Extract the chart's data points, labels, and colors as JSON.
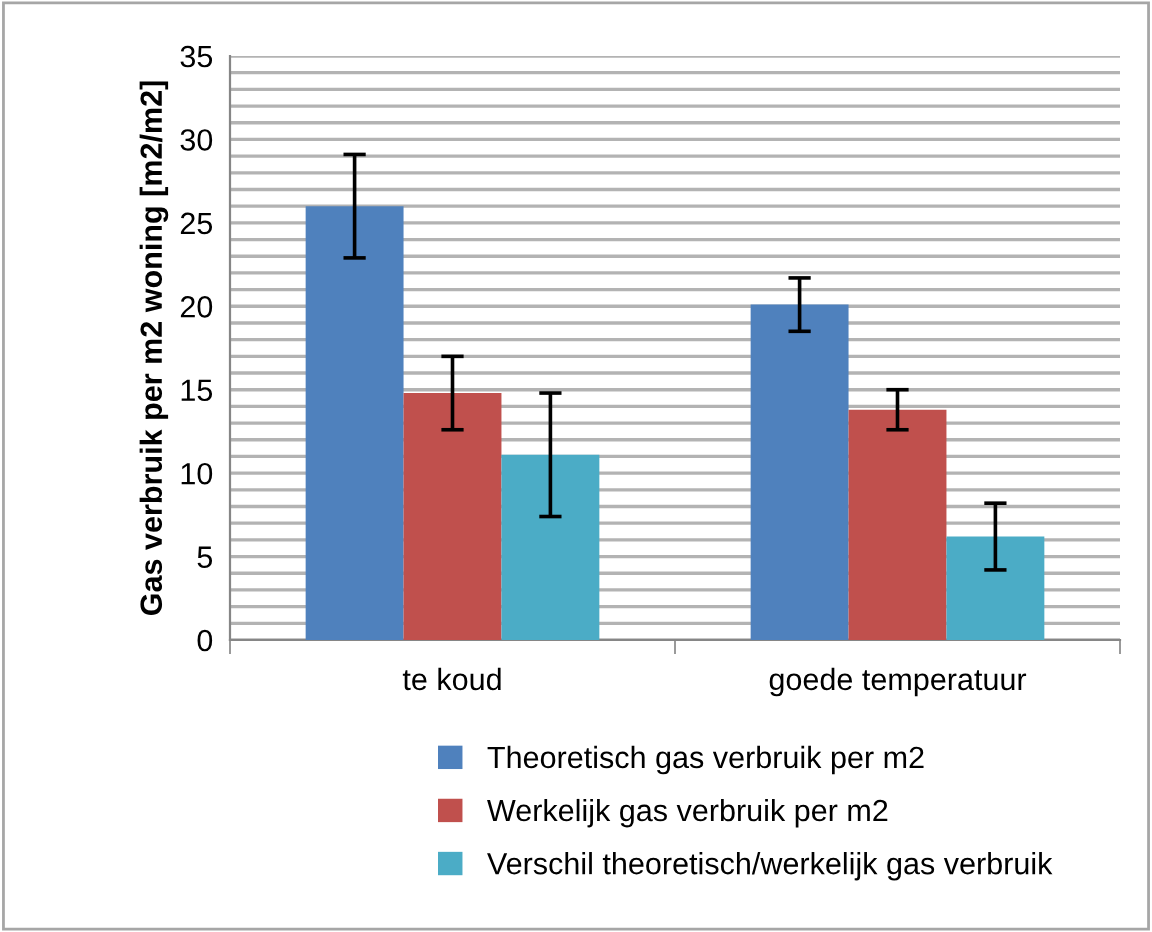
{
  "chart_data": {
    "type": "bar",
    "ylabel": "Gas verbruik per m2 woning [m2/m2]",
    "categories": [
      "te koud",
      "goede temperatuur"
    ],
    "series": [
      {
        "name": "Theoretisch gas verbruik per m2",
        "color": "#4f81bd",
        "values": [
          26.0,
          20.1
        ],
        "errors": [
          3.1,
          1.6
        ]
      },
      {
        "name": "Werkelijk gas verbruik per m2",
        "color": "#c0504d",
        "values": [
          14.8,
          13.8
        ],
        "errors": [
          2.2,
          1.2
        ]
      },
      {
        "name": "Verschil theoretisch/werkelijk gas verbruik",
        "color": "#4bacc6",
        "values": [
          11.1,
          6.2
        ],
        "errors": [
          3.7,
          2.0
        ]
      }
    ],
    "ylim": [
      0,
      35
    ],
    "yticks": [
      0,
      {
        "value": 1,
        "label": null
      },
      {
        "value": 2,
        "label": null
      },
      {
        "value": 3,
        "label": null
      },
      {
        "value": 4,
        "label": null
      },
      5,
      {
        "value": 6,
        "label": null
      },
      {
        "value": 7,
        "label": null
      },
      {
        "value": 8,
        "label": null
      },
      {
        "value": 9,
        "label": null
      },
      10,
      {
        "value": 11,
        "label": null
      },
      {
        "value": 12,
        "label": null
      },
      {
        "value": 13,
        "label": null
      },
      {
        "value": 14,
        "label": null
      },
      15,
      {
        "value": 16,
        "label": null
      },
      {
        "value": 17,
        "label": null
      },
      {
        "value": 18,
        "label": null
      },
      {
        "value": 19,
        "label": null
      },
      20,
      {
        "value": 21,
        "label": null
      },
      {
        "value": 22,
        "label": null
      },
      {
        "value": 23,
        "label": null
      },
      {
        "value": 24,
        "label": null
      },
      25,
      {
        "value": 26,
        "label": null
      },
      {
        "value": 27,
        "label": null
      },
      {
        "value": 28,
        "label": null
      },
      {
        "value": 29,
        "label": null
      },
      30,
      {
        "value": 31,
        "label": null
      },
      {
        "value": 32,
        "label": null
      },
      {
        "value": 33,
        "label": null
      },
      {
        "value": 34,
        "label": null
      },
      35
    ],
    "grid": "y",
    "legend": "bottom"
  }
}
